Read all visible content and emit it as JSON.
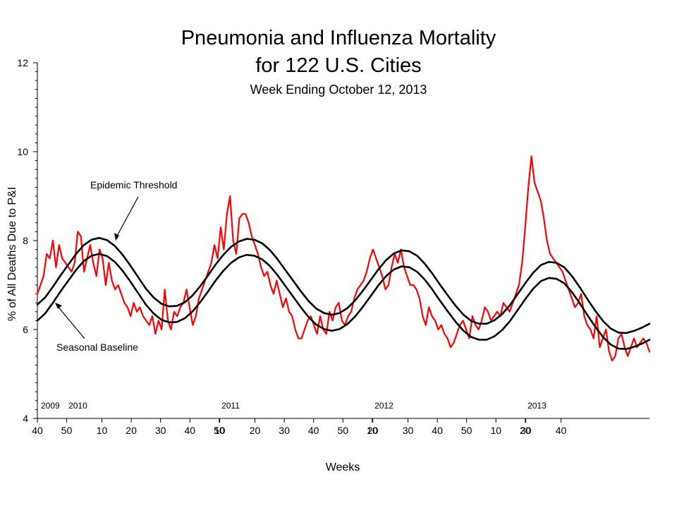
{
  "chart_data": {
    "type": "line",
    "title": "Pneumonia and Influenza Mortality",
    "title_line2": "for 122 U.S. Cities",
    "subtitle": "Week Ending  October 12, 2013",
    "xlabel": "Weeks",
    "ylabel": "% of All Deaths Due to P&I",
    "ylim": [
      4,
      12
    ],
    "yticks": [
      4,
      6,
      8,
      10,
      12
    ],
    "x_range": [
      "2009 wk 40",
      "2013 wk 40"
    ],
    "xtick_labels": [
      "40",
      "50",
      "10",
      "20",
      "30",
      "40",
      "50",
      "10",
      "20",
      "30",
      "40",
      "50",
      "10",
      "20",
      "30",
      "40",
      "50",
      "10",
      "20",
      "30",
      "40"
    ],
    "year_labels": [
      "2009",
      "2010",
      "2011",
      "2012",
      "2013"
    ],
    "grid": false,
    "annotations": [
      "Epidemic Threshold",
      "Seasonal Baseline"
    ],
    "series": [
      {
        "name": "% P&I deaths",
        "color": "#ff0000",
        "values": [
          6.8,
          7.0,
          7.2,
          7.7,
          7.6,
          8.0,
          7.4,
          7.9,
          7.6,
          7.5,
          7.4,
          7.3,
          7.5,
          8.2,
          8.1,
          7.3,
          7.6,
          7.9,
          7.5,
          7.2,
          7.8,
          7.6,
          7.0,
          7.5,
          7.1,
          6.9,
          7.0,
          6.8,
          6.6,
          6.5,
          6.3,
          6.6,
          6.4,
          6.5,
          6.3,
          6.2,
          6.1,
          6.3,
          5.9,
          6.2,
          6.0,
          6.9,
          6.2,
          6.0,
          6.4,
          6.3,
          6.5,
          6.6,
          6.9,
          6.5,
          6.1,
          6.3,
          6.7,
          6.9,
          7.1,
          7.3,
          7.5,
          7.9,
          7.6,
          8.3,
          7.8,
          8.6,
          9.0,
          8.0,
          7.7,
          8.5,
          8.6,
          8.6,
          8.4,
          8.1,
          7.9,
          7.7,
          7.4,
          7.2,
          7.3,
          7.0,
          6.8,
          7.1,
          6.8,
          6.5,
          6.7,
          6.4,
          6.3,
          6.0,
          5.8,
          5.8,
          6.0,
          6.2,
          6.3,
          6.1,
          5.9,
          6.3,
          6.0,
          5.9,
          6.4,
          6.2,
          6.5,
          6.6,
          6.2,
          6.1,
          6.3,
          6.4,
          6.7,
          6.9,
          7.0,
          7.1,
          7.3,
          7.6,
          7.8,
          7.6,
          7.4,
          7.2,
          6.9,
          7.0,
          7.4,
          7.7,
          7.5,
          7.8,
          7.4,
          7.2,
          7.0,
          7.0,
          6.9,
          6.7,
          6.3,
          6.1,
          6.5,
          6.3,
          6.2,
          6.0,
          6.1,
          5.9,
          5.8,
          5.6,
          5.7,
          5.9,
          6.1,
          6.2,
          6.0,
          5.8,
          6.3,
          6.1,
          6.0,
          6.2,
          6.5,
          6.4,
          6.2,
          6.3,
          6.4,
          6.3,
          6.6,
          6.5,
          6.4,
          6.6,
          6.8,
          7.0,
          7.5,
          8.3,
          9.2,
          9.9,
          9.3,
          9.1,
          8.9,
          8.5,
          8.0,
          7.7,
          7.6,
          7.5,
          7.4,
          7.3,
          7.1,
          6.9,
          6.7,
          6.5,
          6.6,
          6.8,
          6.3,
          6.1,
          6.0,
          5.8,
          6.3,
          5.6,
          5.8,
          6.0,
          5.5,
          5.3,
          5.4,
          5.8,
          5.9,
          5.6,
          5.4,
          5.6,
          5.8,
          5.6,
          5.7,
          5.8,
          5.7,
          5.5
        ]
      },
      {
        "name": "Epidemic Threshold",
        "color": "#000000",
        "values": [
          6.56,
          6.72,
          6.96,
          7.22,
          7.46,
          7.7,
          7.9,
          8.02,
          8.06,
          8.01,
          7.88,
          7.68,
          7.44,
          7.18,
          6.92,
          6.72,
          6.58,
          6.52,
          6.53,
          6.61,
          6.76,
          6.97,
          7.21,
          7.46,
          7.68,
          7.86,
          7.98,
          8.04,
          8.02,
          7.94,
          7.79,
          7.58,
          7.34,
          7.1,
          6.86,
          6.64,
          6.47,
          6.37,
          6.33,
          6.37,
          6.48,
          6.65,
          6.87,
          7.11,
          7.35,
          7.56,
          7.71,
          7.78,
          7.76,
          7.66,
          7.48,
          7.25,
          7.0,
          6.76,
          6.53,
          6.33,
          6.19,
          6.13,
          6.13,
          6.21,
          6.35,
          6.55,
          6.8,
          7.05,
          7.28,
          7.45,
          7.52,
          7.5,
          7.4,
          7.2,
          6.95,
          6.68,
          6.42,
          6.19,
          6.02,
          5.93,
          5.92,
          5.97,
          6.04,
          6.13
        ]
      },
      {
        "name": "Seasonal Baseline",
        "color": "#000000",
        "values": [
          6.2,
          6.36,
          6.6,
          6.86,
          7.1,
          7.34,
          7.54,
          7.66,
          7.7,
          7.65,
          7.52,
          7.32,
          7.08,
          6.82,
          6.56,
          6.36,
          6.22,
          6.16,
          6.17,
          6.25,
          6.4,
          6.61,
          6.85,
          7.1,
          7.32,
          7.5,
          7.62,
          7.68,
          7.66,
          7.58,
          7.43,
          7.22,
          6.98,
          6.74,
          6.5,
          6.28,
          6.11,
          6.01,
          5.97,
          6.01,
          6.12,
          6.29,
          6.51,
          6.75,
          6.99,
          7.2,
          7.35,
          7.42,
          7.4,
          7.3,
          7.12,
          6.89,
          6.64,
          6.4,
          6.17,
          5.97,
          5.83,
          5.77,
          5.77,
          5.85,
          5.99,
          6.19,
          6.44,
          6.69,
          6.92,
          7.09,
          7.16,
          7.14,
          7.04,
          6.84,
          6.59,
          6.32,
          6.06,
          5.83,
          5.66,
          5.57,
          5.56,
          5.61,
          5.68,
          5.77
        ]
      }
    ]
  }
}
